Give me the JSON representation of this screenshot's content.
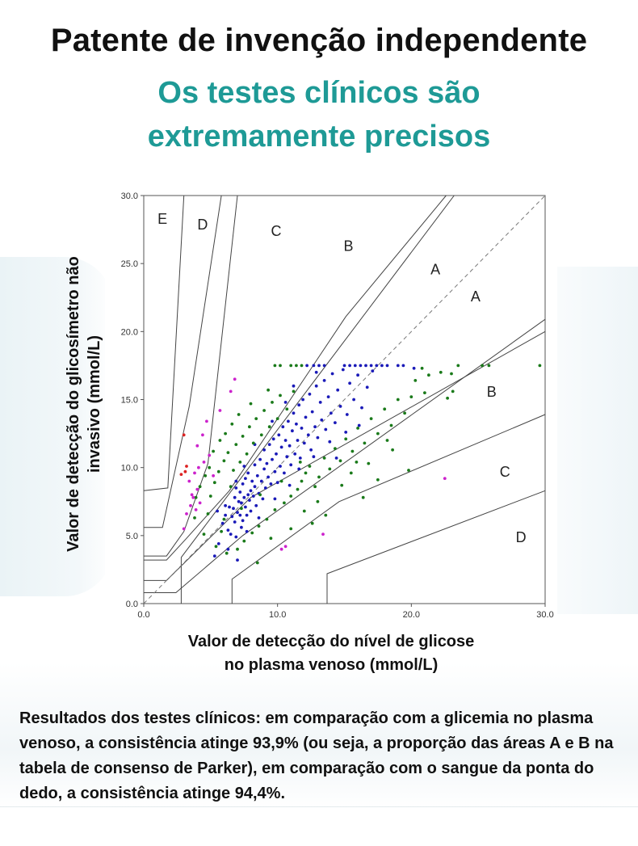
{
  "header": {
    "title": "Patente de invenção independente",
    "subtitle_lines": [
      "Os testes clínicos são",
      "extremamente precisos"
    ],
    "subtitle_color": "#1e9a96"
  },
  "caption": "Resultados dos testes clínicos: em comparação com a glicemia no plasma venoso, a consistência atinge 93,9% (ou seja, a proporção das áreas A e B na tabela de consenso de Parker), em comparação com o sangue da ponta do dedo, a consistência atinge 94,4%.",
  "chart_data": {
    "type": "scatter",
    "title": "",
    "xlabel_lines": [
      "Valor de detecção do nível de glicose",
      "no plasma venoso (mmol/L)"
    ],
    "ylabel_lines": [
      "Valor de detecção do glicosímetro não",
      "invasivo (mmol/L)"
    ],
    "xlim": [
      0,
      30
    ],
    "ylim": [
      0,
      30
    ],
    "x_ticks": [
      "0.0",
      "10.0",
      "20.0",
      "30.0"
    ],
    "y_ticks": [
      "0.0",
      "5.0",
      "10.0",
      "15.0",
      "20.0",
      "25.0",
      "30.0"
    ],
    "grid": false,
    "reference_line": "y = x (dashed)",
    "zone_boundaries": [
      [
        [
          0,
          1.7
        ],
        [
          1.7,
          1.7
        ],
        [
          8,
          7.8
        ],
        [
          30,
          20
        ]
      ],
      [
        [
          0,
          0.8
        ],
        [
          2.4,
          0.8
        ],
        [
          7.4,
          5.0
        ],
        [
          30,
          20.9
        ]
      ],
      [
        [
          2.8,
          0
        ],
        [
          2.8,
          3.4
        ],
        [
          23.2,
          30
        ]
      ],
      [
        [
          0,
          3.2
        ],
        [
          1.7,
          3.2
        ],
        [
          3.2,
          4.8
        ],
        [
          6.4,
          8.3
        ],
        [
          15.1,
          21.1
        ],
        [
          22.6,
          30
        ]
      ],
      [
        [
          6.6,
          0
        ],
        [
          6.6,
          1.8
        ],
        [
          14.6,
          7.5
        ],
        [
          30,
          13.9
        ]
      ],
      [
        [
          0,
          3.5
        ],
        [
          1.7,
          3.5
        ],
        [
          3.0,
          5.3
        ],
        [
          4.8,
          10.3
        ],
        [
          7.0,
          30
        ]
      ],
      [
        [
          13.7,
          0
        ],
        [
          13.7,
          2.2
        ],
        [
          30,
          8.3
        ]
      ],
      [
        [
          0,
          5.6
        ],
        [
          1.4,
          5.6
        ],
        [
          3.4,
          14.5
        ],
        [
          5.8,
          30
        ]
      ],
      [
        [
          0,
          8.3
        ],
        [
          1.8,
          8.5
        ],
        [
          3.0,
          30
        ]
      ]
    ],
    "zone_labels": [
      {
        "text": "E",
        "x": 1.4,
        "y": 28.2
      },
      {
        "text": "D",
        "x": 4.4,
        "y": 27.8
      },
      {
        "text": "C",
        "x": 9.9,
        "y": 27.3
      },
      {
        "text": "B",
        "x": 15.3,
        "y": 26.2
      },
      {
        "text": "A",
        "x": 21.8,
        "y": 24.5
      },
      {
        "text": "A",
        "x": 24.8,
        "y": 22.5
      },
      {
        "text": "B",
        "x": 26.0,
        "y": 15.5
      },
      {
        "text": "C",
        "x": 27.0,
        "y": 9.6
      },
      {
        "text": "D",
        "x": 28.2,
        "y": 4.8
      }
    ],
    "series": [
      {
        "color": "#1a1ab8",
        "points": [
          [
            5.3,
            3.5
          ],
          [
            5.6,
            4.4
          ],
          [
            5.9,
            5.9
          ],
          [
            6.1,
            6.5
          ],
          [
            6.1,
            7.2
          ],
          [
            6.3,
            5.4
          ],
          [
            6.4,
            7.1
          ],
          [
            6.5,
            5.1
          ],
          [
            6.6,
            6.4
          ],
          [
            6.7,
            7.0
          ],
          [
            6.8,
            6.0
          ],
          [
            6.8,
            7.8
          ],
          [
            6.9,
            4.9
          ],
          [
            6.9,
            8.5
          ],
          [
            7.0,
            6.7
          ],
          [
            7.1,
            7.5
          ],
          [
            7.2,
            6.5
          ],
          [
            7.2,
            8.2
          ],
          [
            7.3,
            5.6
          ],
          [
            7.3,
            7.4
          ],
          [
            7.4,
            6.1
          ],
          [
            7.4,
            8.8
          ],
          [
            7.5,
            7.8
          ],
          [
            7.6,
            7.1
          ],
          [
            7.6,
            9.2
          ],
          [
            7.7,
            6.5
          ],
          [
            7.8,
            8.0
          ],
          [
            7.8,
            9.6
          ],
          [
            7.9,
            7.6
          ],
          [
            8.0,
            8.3
          ],
          [
            8.0,
            6.8
          ],
          [
            8.1,
            9.0
          ],
          [
            8.2,
            7.9
          ],
          [
            8.3,
            10.2
          ],
          [
            8.3,
            8.6
          ],
          [
            8.4,
            7.2
          ],
          [
            8.5,
            9.4
          ],
          [
            8.6,
            8.1
          ],
          [
            8.7,
            10.6
          ],
          [
            8.8,
            9.0
          ],
          [
            8.9,
            7.7
          ],
          [
            9.0,
            9.9
          ],
          [
            9.0,
            11.3
          ],
          [
            9.1,
            8.5
          ],
          [
            9.2,
            10.3
          ],
          [
            9.3,
            9.3
          ],
          [
            9.4,
            11.7
          ],
          [
            9.5,
            8.8
          ],
          [
            9.6,
            10.6
          ],
          [
            9.7,
            12.1
          ],
          [
            9.8,
            9.7
          ],
          [
            9.9,
            11.0
          ],
          [
            10.0,
            8.9
          ],
          [
            10.1,
            12.4
          ],
          [
            10.2,
            10.1
          ],
          [
            10.3,
            11.5
          ],
          [
            10.4,
            13.0
          ],
          [
            10.5,
            9.6
          ],
          [
            10.6,
            12.0
          ],
          [
            10.7,
            10.8
          ],
          [
            10.8,
            13.4
          ],
          [
            10.9,
            11.6
          ],
          [
            11.0,
            10.2
          ],
          [
            11.1,
            12.7
          ],
          [
            11.2,
            14.0
          ],
          [
            11.3,
            11.0
          ],
          [
            11.4,
            13.2
          ],
          [
            11.5,
            12.0
          ],
          [
            11.6,
            14.6
          ],
          [
            11.7,
            10.7
          ],
          [
            11.8,
            12.9
          ],
          [
            11.9,
            15.0
          ],
          [
            12.0,
            11.8
          ],
          [
            12.1,
            13.7
          ],
          [
            12.3,
            12.4
          ],
          [
            12.4,
            15.4
          ],
          [
            12.5,
            11.3
          ],
          [
            12.6,
            14.1
          ],
          [
            12.8,
            13.0
          ],
          [
            12.9,
            16.0
          ],
          [
            13.0,
            12.2
          ],
          [
            13.2,
            14.8
          ],
          [
            13.3,
            13.5
          ],
          [
            13.5,
            16.4
          ],
          [
            13.6,
            12.8
          ],
          [
            13.8,
            15.2
          ],
          [
            14.0,
            14.0
          ],
          [
            14.1,
            16.9
          ],
          [
            14.3,
            13.3
          ],
          [
            14.5,
            15.7
          ],
          [
            14.7,
            14.5
          ],
          [
            14.9,
            17.2
          ],
          [
            15.2,
            13.9
          ],
          [
            15.4,
            16.2
          ],
          [
            15.7,
            15.0
          ],
          [
            16.0,
            16.8
          ],
          [
            16.3,
            14.4
          ],
          [
            16.7,
            15.9
          ],
          [
            17.1,
            17.1
          ],
          [
            12.2,
            17.5
          ],
          [
            12.7,
            17.5
          ],
          [
            13.1,
            17.5
          ],
          [
            13.5,
            17.5
          ],
          [
            15.0,
            17.5
          ],
          [
            15.4,
            17.5
          ],
          [
            15.8,
            17.5
          ],
          [
            16.2,
            17.5
          ],
          [
            16.6,
            17.5
          ],
          [
            17.0,
            17.5
          ],
          [
            17.4,
            17.5
          ],
          [
            17.8,
            17.5
          ],
          [
            18.2,
            17.5
          ],
          [
            19.0,
            17.5
          ],
          [
            19.4,
            17.5
          ],
          [
            20.2,
            17.3
          ],
          [
            7.0,
            3.2
          ],
          [
            7.7,
            5.3
          ],
          [
            6.3,
            4.0
          ],
          [
            9.8,
            7.7
          ],
          [
            8.6,
            6.3
          ],
          [
            11.6,
            9.9
          ],
          [
            10.9,
            8.7
          ],
          [
            12.7,
            10.8
          ],
          [
            13.9,
            11.9
          ],
          [
            15.1,
            12.6
          ],
          [
            9.6,
            13.4
          ],
          [
            10.6,
            14.8
          ],
          [
            8.3,
            11.7
          ],
          [
            11.2,
            16.0
          ],
          [
            14.4,
            10.7
          ],
          [
            16.1,
            13.1
          ],
          [
            5.5,
            6.8
          ],
          [
            7.5,
            10.1
          ],
          [
            6.9,
            9.0
          ],
          [
            12.9,
            17.0
          ]
        ]
      },
      {
        "color": "#1a7a1a",
        "points": [
          [
            4.5,
            5.1
          ],
          [
            4.8,
            6.6
          ],
          [
            5.0,
            7.9
          ],
          [
            5.3,
            8.9
          ],
          [
            5.4,
            4.2
          ],
          [
            5.6,
            9.7
          ],
          [
            5.8,
            5.3
          ],
          [
            6.0,
            10.5
          ],
          [
            6.2,
            3.7
          ],
          [
            6.3,
            11.1
          ],
          [
            6.5,
            8.6
          ],
          [
            6.7,
            9.8
          ],
          [
            6.9,
            11.7
          ],
          [
            7.0,
            4.0
          ],
          [
            7.2,
            10.4
          ],
          [
            7.4,
            12.3
          ],
          [
            7.5,
            4.6
          ],
          [
            7.7,
            11.0
          ],
          [
            7.9,
            13.0
          ],
          [
            8.1,
            5.2
          ],
          [
            8.2,
            11.8
          ],
          [
            8.4,
            13.6
          ],
          [
            8.6,
            5.7
          ],
          [
            8.8,
            12.4
          ],
          [
            9.0,
            14.2
          ],
          [
            9.2,
            6.2
          ],
          [
            9.4,
            13.0
          ],
          [
            9.6,
            14.8
          ],
          [
            9.8,
            6.9
          ],
          [
            10.0,
            13.6
          ],
          [
            10.2,
            15.3
          ],
          [
            10.5,
            7.4
          ],
          [
            10.7,
            14.3
          ],
          [
            11.0,
            7.9
          ],
          [
            11.2,
            15.6
          ],
          [
            11.5,
            8.4
          ],
          [
            11.8,
            9.0
          ],
          [
            12.1,
            9.6
          ],
          [
            12.4,
            10.1
          ],
          [
            12.8,
            8.6
          ],
          [
            13.1,
            9.3
          ],
          [
            13.5,
            10.7
          ],
          [
            13.9,
            9.9
          ],
          [
            14.3,
            11.4
          ],
          [
            14.7,
            10.5
          ],
          [
            15.1,
            12.1
          ],
          [
            15.6,
            11.2
          ],
          [
            16.0,
            12.9
          ],
          [
            16.5,
            11.8
          ],
          [
            17.0,
            13.6
          ],
          [
            17.5,
            12.5
          ],
          [
            18.0,
            14.3
          ],
          [
            18.5,
            13.1
          ],
          [
            19.0,
            15.0
          ],
          [
            19.5,
            14.0
          ],
          [
            20.0,
            15.2
          ],
          [
            16.8,
            10.3
          ],
          [
            17.5,
            9.1
          ],
          [
            18.2,
            12.0
          ],
          [
            19.8,
            9.8
          ],
          [
            14.8,
            8.7
          ],
          [
            15.5,
            9.6
          ],
          [
            13.0,
            7.5
          ],
          [
            12.0,
            6.8
          ],
          [
            11.0,
            5.5
          ],
          [
            9.5,
            4.8
          ],
          [
            8.5,
            3.0
          ],
          [
            10.2,
            17.5
          ],
          [
            9.8,
            17.5
          ],
          [
            11.0,
            17.5
          ],
          [
            11.4,
            17.5
          ],
          [
            11.8,
            17.5
          ],
          [
            20.8,
            17.3
          ],
          [
            21.3,
            16.8
          ],
          [
            22.2,
            17.0
          ],
          [
            23.0,
            16.9
          ],
          [
            23.5,
            17.5
          ],
          [
            25.3,
            17.5
          ],
          [
            25.8,
            17.5
          ],
          [
            29.6,
            17.5
          ],
          [
            23.1,
            15.6
          ],
          [
            22.7,
            15.1
          ],
          [
            21.0,
            15.5
          ],
          [
            20.3,
            16.4
          ],
          [
            3.9,
            7.8
          ],
          [
            3.8,
            6.3
          ],
          [
            4.2,
            8.6
          ],
          [
            4.6,
            9.4
          ],
          [
            4.9,
            10.0
          ],
          [
            5.2,
            11.2
          ],
          [
            5.7,
            12.0
          ],
          [
            6.1,
            12.5
          ],
          [
            6.6,
            13.2
          ],
          [
            7.1,
            13.9
          ],
          [
            9.3,
            15.7
          ],
          [
            8.0,
            14.7
          ],
          [
            12.6,
            5.9
          ],
          [
            16.4,
            7.8
          ],
          [
            13.6,
            6.5
          ],
          [
            15.9,
            10.4
          ],
          [
            18.6,
            11.3
          ],
          [
            6.0,
            6.2
          ],
          [
            7.3,
            7.0
          ],
          [
            8.7,
            8.0
          ],
          [
            10.3,
            9.0
          ],
          [
            11.7,
            10.4
          ]
        ]
      },
      {
        "color": "#cc22cc",
        "points": [
          [
            3.0,
            5.5
          ],
          [
            3.2,
            6.6
          ],
          [
            3.5,
            7.2
          ],
          [
            3.7,
            7.8
          ],
          [
            3.4,
            9.0
          ],
          [
            3.8,
            9.6
          ],
          [
            4.0,
            8.4
          ],
          [
            4.2,
            7.4
          ],
          [
            3.9,
            6.9
          ],
          [
            4.1,
            10.0
          ],
          [
            4.5,
            10.4
          ],
          [
            4.9,
            10.9
          ],
          [
            4.0,
            11.6
          ],
          [
            4.4,
            12.4
          ],
          [
            4.7,
            13.4
          ],
          [
            6.5,
            15.6
          ],
          [
            6.8,
            16.5
          ],
          [
            5.7,
            14.2
          ],
          [
            5.2,
            9.4
          ],
          [
            3.6,
            8.0
          ],
          [
            10.3,
            4.0
          ],
          [
            10.6,
            4.2
          ],
          [
            13.4,
            5.1
          ],
          [
            22.5,
            9.2
          ]
        ]
      },
      {
        "color": "#dd2222",
        "points": [
          [
            2.8,
            9.5
          ],
          [
            3.2,
            10.1
          ],
          [
            3.0,
            12.4
          ],
          [
            3.1,
            9.7
          ]
        ]
      }
    ]
  }
}
